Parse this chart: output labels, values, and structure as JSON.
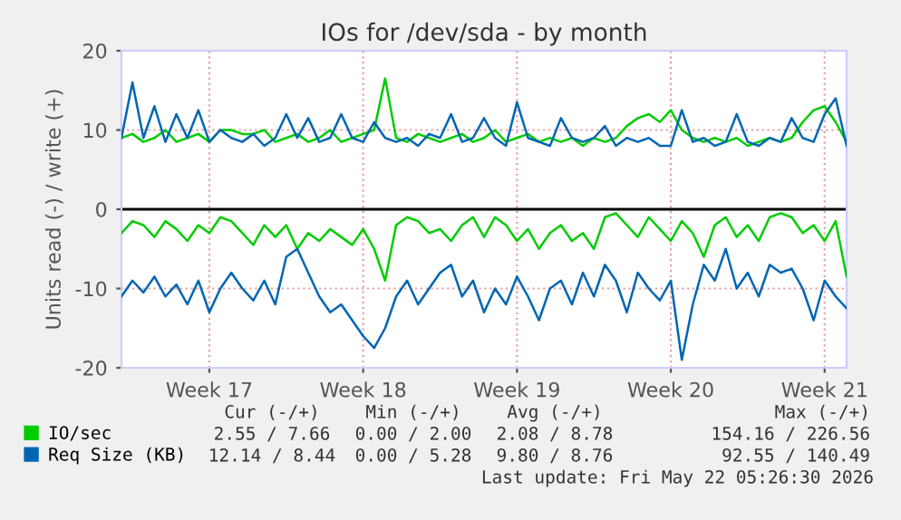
{
  "chart_data": {
    "type": "line",
    "title": "IOs for /dev/sda - by month",
    "ylabel": "Units read (-) / write (+)",
    "x": [
      "2026-04-19T12:00",
      "2026-04-20T00:00",
      "2026-04-20T12:00",
      "2026-04-21T00:00",
      "2026-04-21T12:00",
      "2026-04-22T00:00",
      "2026-04-22T12:00",
      "2026-04-23T00:00",
      "2026-04-23T12:00",
      "2026-04-24T00:00",
      "2026-04-24T12:00",
      "2026-04-25T00:00",
      "2026-04-25T12:00",
      "2026-04-26T00:00",
      "2026-04-26T12:00",
      "2026-04-27T00:00",
      "2026-04-27T12:00",
      "2026-04-28T00:00",
      "2026-04-28T12:00",
      "2026-04-29T00:00",
      "2026-04-29T12:00",
      "2026-04-30T00:00",
      "2026-04-30T12:00",
      "2026-05-01T00:00",
      "2026-05-01T12:00",
      "2026-05-02T00:00",
      "2026-05-02T12:00",
      "2026-05-03T00:00",
      "2026-05-03T12:00",
      "2026-05-04T00:00",
      "2026-05-04T12:00",
      "2026-05-05T00:00",
      "2026-05-05T12:00",
      "2026-05-06T00:00",
      "2026-05-06T12:00",
      "2026-05-07T00:00",
      "2026-05-07T12:00",
      "2026-05-08T00:00",
      "2026-05-08T12:00",
      "2026-05-09T00:00",
      "2026-05-09T12:00",
      "2026-05-10T00:00",
      "2026-05-10T12:00",
      "2026-05-11T00:00",
      "2026-05-11T12:00",
      "2026-05-12T00:00",
      "2026-05-12T12:00",
      "2026-05-13T00:00",
      "2026-05-13T12:00",
      "2026-05-14T00:00",
      "2026-05-14T12:00",
      "2026-05-15T00:00",
      "2026-05-15T12:00",
      "2026-05-16T00:00",
      "2026-05-16T12:00",
      "2026-05-17T00:00",
      "2026-05-17T12:00",
      "2026-05-18T00:00",
      "2026-05-18T12:00",
      "2026-05-19T00:00",
      "2026-05-19T12:00",
      "2026-05-20T00:00",
      "2026-05-20T12:00",
      "2026-05-21T00:00",
      "2026-05-21T12:00",
      "2026-05-22T00:00",
      "2026-05-22T12:00"
    ],
    "series": [
      {
        "name": "IO/sec",
        "color": "#00cc00",
        "values": [
          9,
          9.5,
          8.5,
          9,
          10,
          8.5,
          9,
          9.5,
          8.5,
          10,
          10,
          9.5,
          9.5,
          10,
          8.5,
          9,
          9.5,
          8.5,
          9,
          10,
          8.5,
          9,
          9.5,
          10,
          16.5,
          9,
          8.5,
          9.5,
          9,
          8.5,
          9,
          9.5,
          8.5,
          9,
          10,
          8.5,
          9,
          9.5,
          8.5,
          9,
          8.5,
          9,
          8,
          9,
          8.5,
          9,
          10.5,
          11.5,
          12,
          11,
          12.5,
          10,
          9,
          8.5,
          9,
          8.5,
          9,
          8,
          8.5,
          9,
          8.5,
          9,
          11,
          12.5,
          13,
          11,
          8.5
        ]
      },
      {
        "color": "#00cc00",
        "values": [
          -3,
          -1.5,
          -2,
          -3.5,
          -1.5,
          -2.5,
          -4,
          -2,
          -3,
          -1,
          -1.5,
          -3,
          -4.5,
          -2,
          -3.5,
          -2,
          -5,
          -3,
          -4,
          -2.5,
          -3.5,
          -4.5,
          -2.5,
          -5,
          -9,
          -2,
          -1,
          -1.5,
          -3,
          -2.5,
          -4,
          -2,
          -1,
          -3.5,
          -1,
          -2,
          -4,
          -2.5,
          -5,
          -3,
          -2,
          -4,
          -3,
          -5,
          -1,
          -0.5,
          -2,
          -3.5,
          -1,
          -2.5,
          -4,
          -1.5,
          -3,
          -6,
          -2,
          -1,
          -3.5,
          -2,
          -4,
          -1,
          -0.5,
          -1,
          -3,
          -2,
          -4,
          -1.5,
          -8.5
        ]
      },
      {
        "name": "Req Size (KB)",
        "color": "#0066b3",
        "values": [
          9,
          16,
          9,
          13,
          8.5,
          12,
          9,
          12.5,
          8.5,
          10,
          9,
          8.5,
          9.5,
          8,
          9,
          12,
          9,
          11.5,
          8.5,
          9,
          12,
          9,
          8.5,
          11,
          9,
          8.5,
          9,
          8,
          9.5,
          9,
          12,
          8.5,
          9,
          11.5,
          9,
          8,
          13.5,
          9,
          8.5,
          8,
          11.5,
          9,
          8.5,
          9,
          10.5,
          8,
          9,
          8.5,
          9,
          8,
          8,
          12.5,
          8.5,
          9,
          8,
          8.5,
          12,
          8.5,
          8,
          9,
          8.5,
          11.5,
          9,
          8.5,
          12,
          14,
          8
        ]
      },
      {
        "color": "#0066b3",
        "values": [
          -11,
          -9,
          -10.5,
          -8.5,
          -11,
          -9.5,
          -12,
          -9,
          -13,
          -10,
          -8,
          -10,
          -11.5,
          -9,
          -12,
          -6,
          -5,
          -8,
          -11,
          -13,
          -12,
          -14,
          -16,
          -17.5,
          -15,
          -11,
          -9,
          -12,
          -10,
          -8,
          -7,
          -11,
          -9,
          -13,
          -10,
          -12,
          -8.5,
          -11,
          -14,
          -10,
          -9,
          -12,
          -8,
          -11,
          -7,
          -9,
          -13,
          -8,
          -10,
          -11.5,
          -9,
          -19,
          -12,
          -7,
          -9,
          -5,
          -10,
          -8,
          -11,
          -7,
          -8,
          -7.5,
          -10,
          -14,
          -9,
          -11,
          -12.5
        ]
      }
    ],
    "xlim": [
      "2026-04-19T12:00",
      "2026-05-22T12:00"
    ],
    "xticks": [
      {
        "value": "2026-04-23T12:00",
        "label": "Week 17"
      },
      {
        "value": "2026-04-30T12:00",
        "label": "Week 18"
      },
      {
        "value": "2026-05-07T12:00",
        "label": "Week 19"
      },
      {
        "value": "2026-05-14T12:00",
        "label": "Week 20"
      },
      {
        "value": "2026-05-21T12:00",
        "label": "Week 21"
      }
    ],
    "ylim": [
      -20,
      20
    ],
    "yticks": [
      -20,
      -10,
      0,
      10,
      20
    ],
    "ref_lines": [
      {
        "axis": "y",
        "value": 0,
        "color": "#000000"
      }
    ],
    "grid": true,
    "legend": "bottom left",
    "annotations": [
      "Cur (-/+)",
      "Min (-/+)",
      "Avg (-/+)",
      "Max (-/+)",
      "2.55 / 7.66",
      "0.00 / 2.00",
      "2.08 / 8.78",
      "154.16 / 226.56",
      "12.14 / 8.44",
      "0.00 / 5.28",
      "9.80 / 8.76",
      "92.55 / 140.49",
      "Last update: Fri May 22 05:26:30 2026"
    ]
  }
}
